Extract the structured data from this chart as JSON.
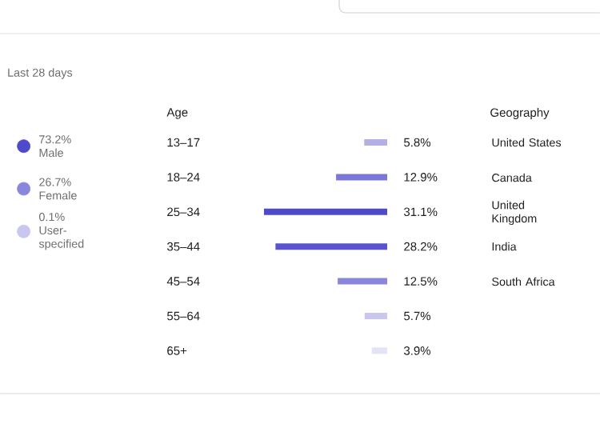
{
  "chart_data": [
    {
      "type": "other",
      "categories": [
        "Male",
        "Female",
        "User-specified"
      ],
      "value_labels": [
        "73.2%",
        "26.7%",
        "0.1%"
      ],
      "colors": [
        "#4f4acb",
        "#8a86dc",
        "#c9c7f0"
      ],
      "annotations": [
        "Last 28 days"
      ]
    },
    {
      "type": "bar",
      "orientation": "horizontal",
      "title": "Age",
      "categories": [
        "13–17",
        "18–24",
        "25–34",
        "35–44",
        "45–54",
        "55–64",
        "65+"
      ],
      "values": [
        5.8,
        12.9,
        31.1,
        28.2,
        12.5,
        5.7,
        3.9
      ],
      "value_labels": [
        "5.8%",
        "12.9%",
        "31.1%",
        "28.2%",
        "12.5%",
        "5.7%",
        "3.9%"
      ],
      "colors": [
        "#b3b0e8",
        "#7b77d9",
        "#4f4acb",
        "#5a55cf",
        "#8a86dc",
        "#c9c7f0",
        "#e3e2f7"
      ],
      "data_labels": true
    },
    {
      "type": "other",
      "title": "Geography",
      "categories": [
        "United States",
        "Canada",
        "United Kingdom",
        "India",
        "South Africa"
      ]
    }
  ]
}
